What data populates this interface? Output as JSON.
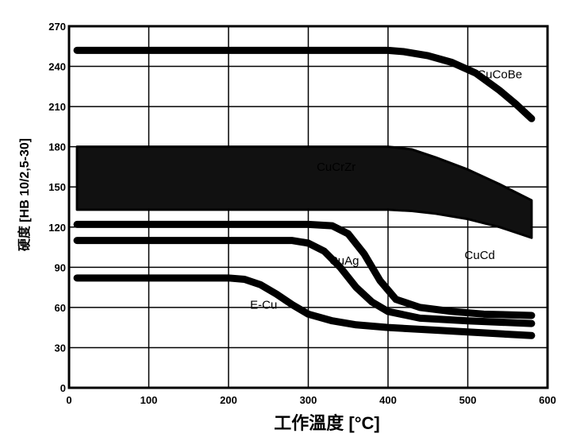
{
  "chart_data": {
    "type": "line",
    "xlabel": "工作溫度 [°C]",
    "ylabel": "硬度 [HB 10/2,5-30]",
    "xlim": [
      0,
      600
    ],
    "ylim": [
      0,
      270
    ],
    "xticks": [
      0,
      100,
      200,
      300,
      400,
      500,
      600
    ],
    "yticks": [
      0,
      30,
      60,
      90,
      120,
      150,
      180,
      210,
      240,
      270
    ],
    "grid": true,
    "series": [
      {
        "name": "CuCoBe",
        "x": [
          10,
          100,
          200,
          300,
          400,
          420,
          450,
          480,
          510,
          540,
          560,
          580
        ],
        "y": [
          252,
          252,
          252,
          252,
          252,
          251,
          248,
          243,
          235,
          222,
          212,
          201
        ]
      },
      {
        "name": "CuCrZr",
        "band": true,
        "x": [
          10,
          100,
          200,
          300,
          400,
          430,
          460,
          500,
          540,
          580
        ],
        "y_upper": [
          180,
          180,
          180,
          180,
          180,
          178,
          172,
          163,
          152,
          140
        ],
        "y_lower": [
          133,
          133,
          133,
          133,
          133,
          132,
          130,
          126,
          120,
          112
        ]
      },
      {
        "name": "CuCd",
        "x": [
          10,
          100,
          200,
          300,
          330,
          350,
          370,
          390,
          410,
          440,
          480,
          520,
          580
        ],
        "y": [
          122,
          122,
          122,
          122,
          121,
          115,
          100,
          80,
          66,
          60,
          57,
          55,
          54
        ]
      },
      {
        "name": "CuAg",
        "x": [
          10,
          100,
          200,
          280,
          300,
          320,
          340,
          360,
          380,
          400,
          440,
          500,
          580
        ],
        "y": [
          110,
          110,
          110,
          110,
          108,
          102,
          90,
          75,
          64,
          57,
          52,
          50,
          48
        ]
      },
      {
        "name": "E-Cu",
        "x": [
          10,
          100,
          200,
          220,
          240,
          260,
          280,
          300,
          330,
          360,
          400,
          460,
          520,
          580
        ],
        "y": [
          82,
          82,
          82,
          81,
          77,
          70,
          62,
          55,
          50,
          47,
          45,
          43,
          41,
          39
        ]
      }
    ]
  }
}
